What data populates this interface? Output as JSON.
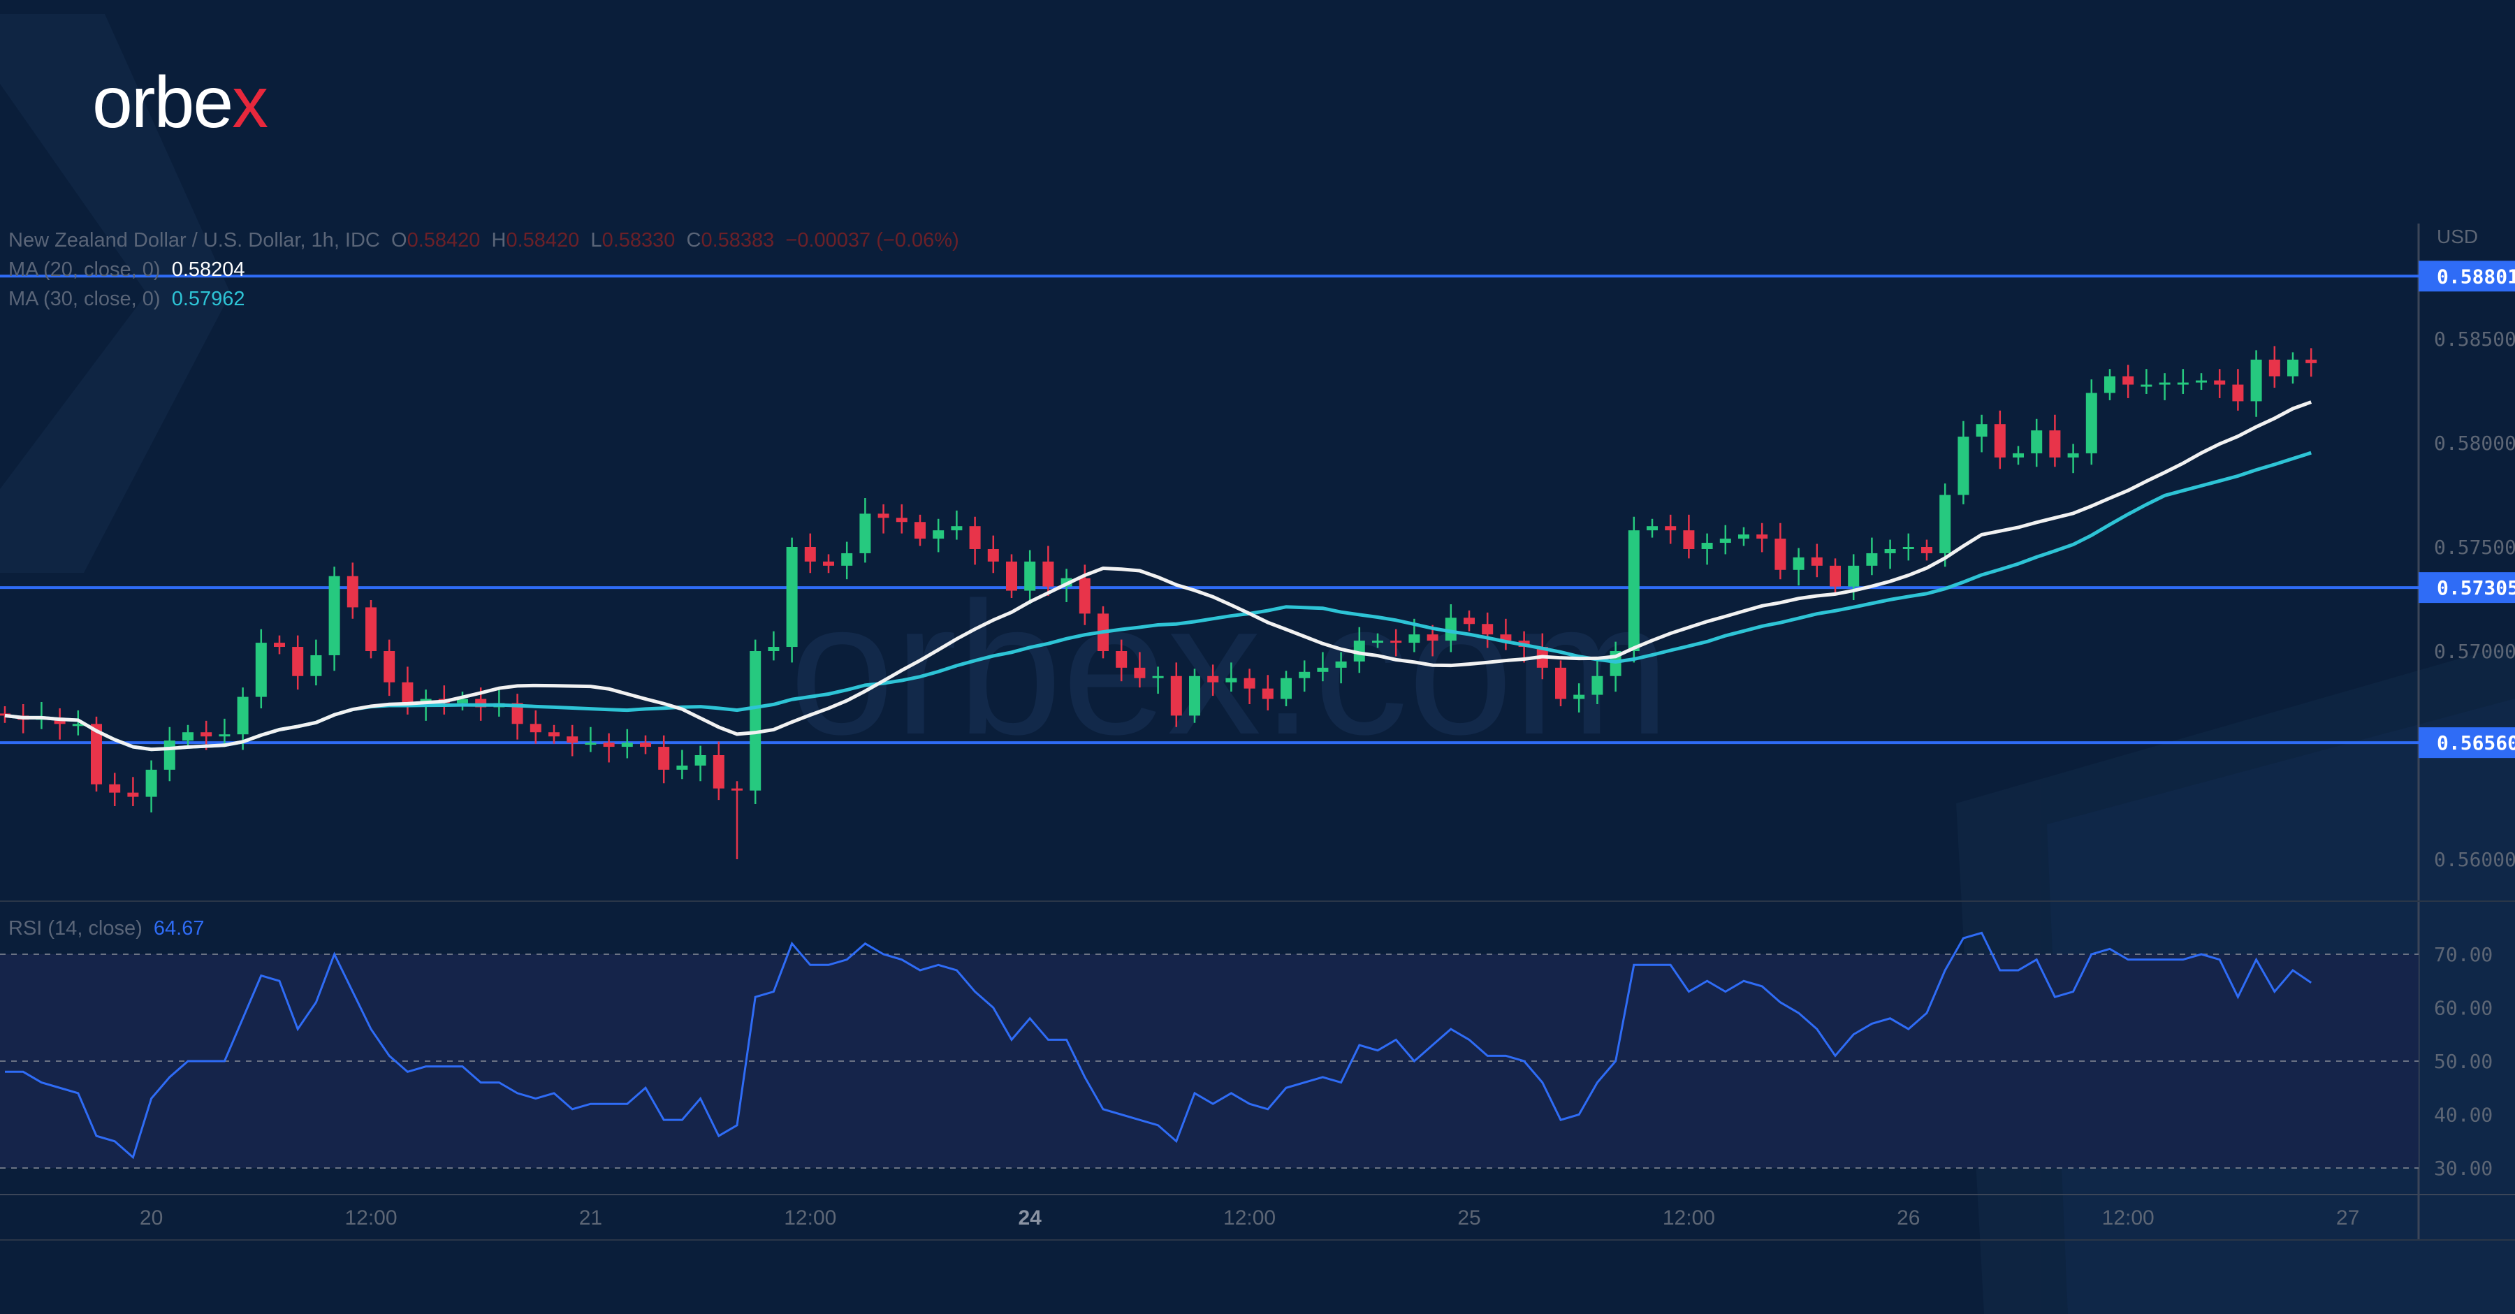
{
  "logo": {
    "text_main": "orbe",
    "text_accent": "x"
  },
  "watermark": "orbex.com",
  "legend": {
    "symbol": "New Zealand Dollar / U.S. Dollar, 1h, IDC",
    "o_label": "O",
    "o": "0.58420",
    "h_label": "H",
    "h": "0.58420",
    "l_label": "L",
    "l": "0.58330",
    "c_label": "C",
    "c": "0.58383",
    "change": "−0.00037 (−0.06%)",
    "ma20_label": "MA (20, close, 0)",
    "ma20_value": "0.58204",
    "ma30_label": "MA (30, close, 0)",
    "ma30_value": "0.57962",
    "rsi_label": "RSI (14, close)",
    "rsi_value": "64.67"
  },
  "colors": {
    "up": "#26c97f",
    "down": "#e8344a",
    "ma20": "#f2f2f2",
    "ma30": "#2ec4d6",
    "rsi": "#2f6cf6",
    "level": "#2f6cf6",
    "background": "#0a1e3a"
  },
  "chart_data": {
    "type": "candlestick",
    "currency_label": "USD",
    "ylim": [
      0.5585,
      0.5895
    ],
    "price_ticks": [
      "0.58500",
      "0.58000",
      "0.57500",
      "0.57000",
      "0.56000"
    ],
    "price_tick_values": [
      0.585,
      0.58,
      0.575,
      0.57,
      0.56
    ],
    "levels": [
      {
        "value": 0.58801,
        "label": "0.58801"
      },
      {
        "value": 0.57305,
        "label": "0.57305"
      },
      {
        "value": 0.5656,
        "label": "0.56560"
      }
    ],
    "first_open": 0.567,
    "notable_low": {
      "index": 40,
      "value": 0.56
    },
    "closes": [
      0.5669,
      0.5667,
      0.5668,
      0.5665,
      0.5665,
      0.5636,
      0.5632,
      0.563,
      0.5643,
      0.5657,
      0.5661,
      0.5659,
      0.566,
      0.5678,
      0.5704,
      0.5702,
      0.5688,
      0.5698,
      0.5736,
      0.5721,
      0.57,
      0.5685,
      0.5674,
      0.5677,
      0.5675,
      0.5677,
      0.5673,
      0.5675,
      0.5665,
      0.5661,
      0.5659,
      0.5656,
      0.5656,
      0.5654,
      0.5656,
      0.5654,
      0.5643,
      0.5645,
      0.565,
      0.5634,
      0.5633,
      0.57,
      0.5702,
      0.575,
      0.5743,
      0.5741,
      0.5747,
      0.5766,
      0.5764,
      0.5762,
      0.5754,
      0.5758,
      0.576,
      0.5749,
      0.5743,
      0.5729,
      0.5743,
      0.5731,
      0.5735,
      0.5718,
      0.57,
      0.5692,
      0.5687,
      0.5688,
      0.5669,
      0.5688,
      0.5685,
      0.5687,
      0.5682,
      0.5677,
      0.5687,
      0.569,
      0.5692,
      0.5695,
      0.5705,
      0.5705,
      0.5704,
      0.5708,
      0.5705,
      0.5716,
      0.5713,
      0.5708,
      0.5705,
      0.5702,
      0.5692,
      0.5677,
      0.5679,
      0.5688,
      0.57,
      0.5758,
      0.576,
      0.5758,
      0.5749,
      0.5752,
      0.5754,
      0.5756,
      0.5754,
      0.5739,
      0.5745,
      0.5741,
      0.5731,
      0.5741,
      0.5747,
      0.5749,
      0.575,
      0.5747,
      0.5775,
      0.5803,
      0.5809,
      0.5793,
      0.5795,
      0.5806,
      0.5793,
      0.5795,
      0.5824,
      0.5832,
      0.5828,
      0.5828,
      0.5829,
      0.5829,
      0.583,
      0.5828,
      0.582,
      0.584,
      0.5832,
      0.584,
      0.58383
    ],
    "rsi": {
      "ticks": [
        "70.00",
        "60.00",
        "50.00",
        "40.00",
        "30.00"
      ],
      "tick_values": [
        70,
        60,
        50,
        40,
        30
      ],
      "band": [
        30,
        70
      ],
      "values": [
        48,
        48,
        46,
        45,
        44,
        36,
        35,
        32,
        43,
        47,
        50,
        50,
        50,
        58,
        66,
        65,
        56,
        61,
        70,
        63,
        56,
        51,
        48,
        49,
        49,
        49,
        46,
        46,
        44,
        43,
        44,
        41,
        42,
        42,
        42,
        45,
        39,
        39,
        43,
        36,
        38,
        62,
        63,
        72,
        68,
        68,
        69,
        72,
        70,
        69,
        67,
        68,
        67,
        63,
        60,
        54,
        58,
        54,
        54,
        47,
        41,
        40,
        39,
        38,
        35,
        44,
        42,
        44,
        42,
        41,
        45,
        46,
        47,
        46,
        53,
        52,
        54,
        50,
        53,
        56,
        54,
        51,
        51,
        50,
        46,
        39,
        40,
        46,
        50,
        68,
        68,
        68,
        63,
        65,
        63,
        65,
        64,
        61,
        59,
        56,
        51,
        55,
        57,
        58,
        56,
        59,
        67,
        73,
        74,
        67,
        67,
        69,
        62,
        63,
        70,
        71,
        69,
        69,
        69,
        69,
        70,
        69,
        62,
        69,
        63,
        67,
        64.67
      ]
    },
    "time_labels": [
      {
        "label": "20",
        "index": 8,
        "bold": false
      },
      {
        "label": "12:00",
        "index": 20,
        "bold": false
      },
      {
        "label": "21",
        "index": 32,
        "bold": false
      },
      {
        "label": "12:00",
        "index": 44,
        "bold": false
      },
      {
        "label": "24",
        "index": 56,
        "bold": true
      },
      {
        "label": "12:00",
        "index": 68,
        "bold": false
      },
      {
        "label": "25",
        "index": 80,
        "bold": false
      },
      {
        "label": "12:00",
        "index": 92,
        "bold": false
      },
      {
        "label": "26",
        "index": 104,
        "bold": false
      },
      {
        "label": "12:00",
        "index": 116,
        "bold": false
      },
      {
        "label": "27",
        "index": 128,
        "bold": false
      }
    ]
  }
}
